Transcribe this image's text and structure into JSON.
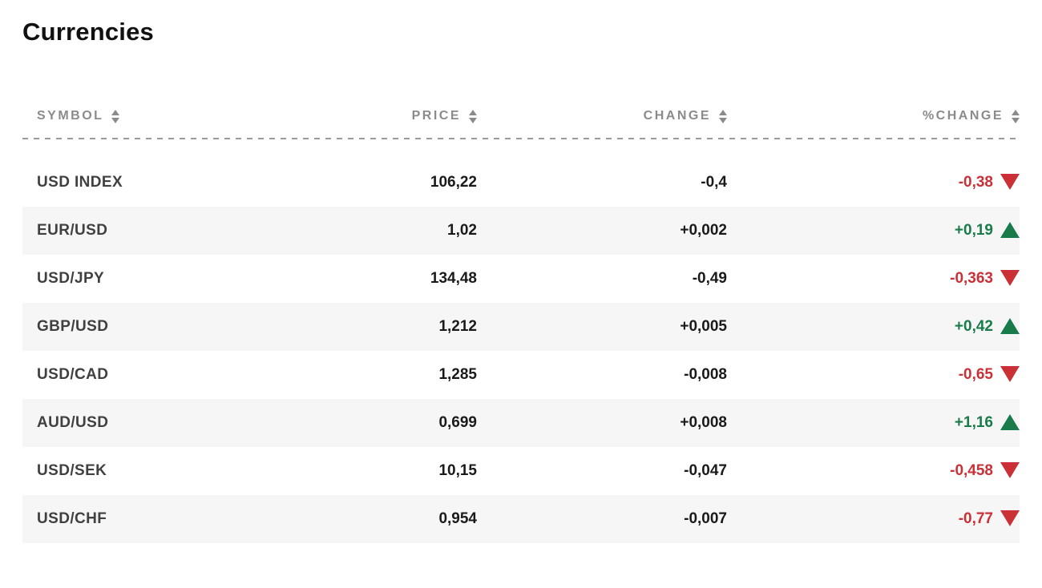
{
  "title": "Currencies",
  "colors": {
    "red": "#cb3037",
    "green": "#187b49",
    "header_gray": "#8b8b8b",
    "dash_gray": "#9a9a9a",
    "symbol_text": "#404040",
    "price_text": "#1a1a1a",
    "row_alt": "#f6f6f6"
  },
  "table": {
    "columns": [
      {
        "key": "symbol",
        "label": "SYMBOL",
        "sortable": true
      },
      {
        "key": "price",
        "label": "PRICE",
        "sortable": true
      },
      {
        "key": "change",
        "label": "CHANGE",
        "sortable": true
      },
      {
        "key": "pct_change",
        "label": "%CHANGE",
        "sortable": true
      }
    ],
    "rows": [
      {
        "symbol": "USD INDEX",
        "price": "106,22",
        "change": "-0,4",
        "pct_change": "-0,38",
        "direction": "down"
      },
      {
        "symbol": "EUR/USD",
        "price": "1,02",
        "change": "+0,002",
        "pct_change": "+0,19",
        "direction": "up"
      },
      {
        "symbol": "USD/JPY",
        "price": "134,48",
        "change": "-0,49",
        "pct_change": "-0,363",
        "direction": "down"
      },
      {
        "symbol": "GBP/USD",
        "price": "1,212",
        "change": "+0,005",
        "pct_change": "+0,42",
        "direction": "up"
      },
      {
        "symbol": "USD/CAD",
        "price": "1,285",
        "change": "-0,008",
        "pct_change": "-0,65",
        "direction": "down"
      },
      {
        "symbol": "AUD/USD",
        "price": "0,699",
        "change": "+0,008",
        "pct_change": "+1,16",
        "direction": "up"
      },
      {
        "symbol": "USD/SEK",
        "price": "10,15",
        "change": "-0,047",
        "pct_change": "-0,458",
        "direction": "down"
      },
      {
        "symbol": "USD/CHF",
        "price": "0,954",
        "change": "-0,007",
        "pct_change": "-0,77",
        "direction": "down"
      }
    ]
  }
}
